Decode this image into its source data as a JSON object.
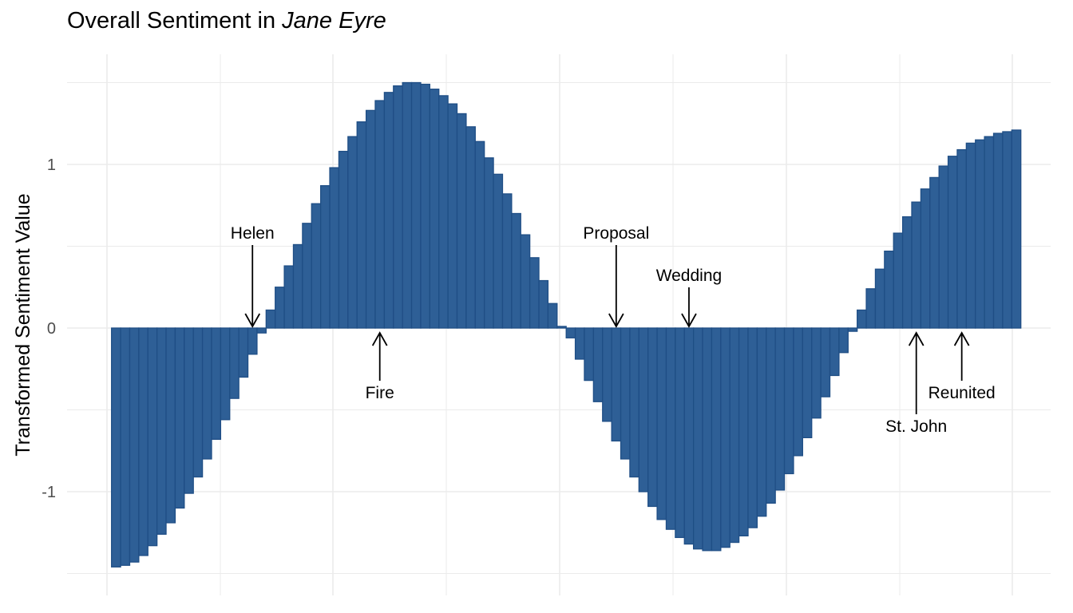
{
  "title": {
    "prefix": "Overall Sentiment in ",
    "emph": "Jane Eyre"
  },
  "chart_data": {
    "type": "bar",
    "title": "Overall Sentiment in Jane Eyre",
    "xlabel": "",
    "ylabel": "Transformed Sentiment Value",
    "x": [
      1,
      2,
      3,
      4,
      5,
      6,
      7,
      8,
      9,
      10,
      11,
      12,
      13,
      14,
      15,
      16,
      17,
      18,
      19,
      20,
      21,
      22,
      23,
      24,
      25,
      26,
      27,
      28,
      29,
      30,
      31,
      32,
      33,
      34,
      35,
      36,
      37,
      38,
      39,
      40,
      41,
      42,
      43,
      44,
      45,
      46,
      47,
      48,
      49,
      50,
      51,
      52,
      53,
      54,
      55,
      56,
      57,
      58,
      59,
      60,
      61,
      62,
      63,
      64,
      65,
      66,
      67,
      68,
      69,
      70,
      71,
      72,
      73,
      74,
      75,
      76,
      77,
      78,
      79,
      80,
      81,
      82,
      83,
      84,
      85,
      86,
      87,
      88,
      89,
      90,
      91,
      92,
      93,
      94,
      95,
      96,
      97,
      98,
      99,
      100
    ],
    "values": [
      -1.46,
      -1.45,
      -1.43,
      -1.39,
      -1.33,
      -1.26,
      -1.19,
      -1.1,
      -1.01,
      -0.91,
      -0.8,
      -0.68,
      -0.56,
      -0.43,
      -0.3,
      -0.16,
      -0.03,
      0.11,
      0.25,
      0.38,
      0.51,
      0.64,
      0.76,
      0.87,
      0.98,
      1.08,
      1.17,
      1.26,
      1.33,
      1.39,
      1.44,
      1.48,
      1.5,
      1.5,
      1.49,
      1.46,
      1.42,
      1.37,
      1.31,
      1.23,
      1.14,
      1.04,
      0.94,
      0.82,
      0.7,
      0.57,
      0.43,
      0.29,
      0.15,
      0.01,
      -0.06,
      -0.19,
      -0.32,
      -0.45,
      -0.57,
      -0.69,
      -0.8,
      -0.91,
      -1.0,
      -1.09,
      -1.17,
      -1.23,
      -1.28,
      -1.32,
      -1.35,
      -1.36,
      -1.36,
      -1.34,
      -1.31,
      -1.27,
      -1.22,
      -1.15,
      -1.07,
      -0.99,
      -0.89,
      -0.78,
      -0.67,
      -0.55,
      -0.42,
      -0.29,
      -0.15,
      -0.02,
      0.11,
      0.24,
      0.36,
      0.47,
      0.58,
      0.68,
      0.77,
      0.85,
      0.92,
      0.99,
      1.05,
      1.09,
      1.13,
      1.15,
      1.17,
      1.19,
      1.2,
      1.21
    ],
    "ylim": [
      -1.55,
      1.65
    ],
    "yticks": [
      -1,
      0,
      1
    ],
    "ytick_labels": [
      "-1",
      "0",
      "1"
    ],
    "bar_color": "#2E5F96",
    "bar_outline": "#1F4E85",
    "grid": true,
    "annotations": [
      {
        "label": "Helen",
        "x": 16,
        "y": 0.0,
        "direction": "down"
      },
      {
        "label": "Fire",
        "x": 30,
        "y": 0.0,
        "direction": "up"
      },
      {
        "label": "Proposal",
        "x": 56,
        "y": 0.0,
        "direction": "down"
      },
      {
        "label": "Wedding",
        "x": 64,
        "y": 0.0,
        "direction": "down"
      },
      {
        "label": "St. John",
        "x": 89,
        "y": 0.0,
        "direction": "up"
      },
      {
        "label": "Reunited",
        "x": 94,
        "y": 0.0,
        "direction": "up"
      }
    ]
  }
}
